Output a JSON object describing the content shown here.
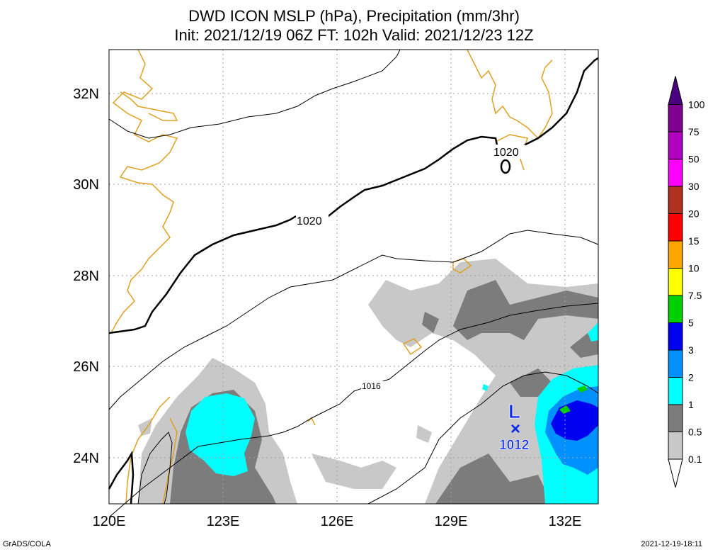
{
  "header": {
    "title_line1": "DWD ICON MSLP (hPa), Precipitation (mm/3hr)",
    "title_line2": "Init: 2021/12/19 06Z  FT: 102h  Valid: 2021/12/23 12Z"
  },
  "map": {
    "lon_range": [
      120,
      133
    ],
    "lat_range": [
      23,
      33
    ],
    "lon_ticks": [
      "120E",
      "123E",
      "126E",
      "129E",
      "132E"
    ],
    "lat_ticks": [
      "24N",
      "26N",
      "28N",
      "30N",
      "32N"
    ],
    "isobar_labels": [
      "1020",
      "1020",
      "1016"
    ],
    "low_center": {
      "symbol": "L",
      "marker": "×",
      "pressure": "1012"
    },
    "colors": {
      "coastline": "#e0a020",
      "isobar": "#000000",
      "low": "#0a28f0"
    }
  },
  "colorbar": {
    "labels": [
      "0.1",
      "0.5",
      "1",
      "2",
      "3",
      "5",
      "7.5",
      "10",
      "15",
      "20",
      "30",
      "50",
      "75",
      "100"
    ],
    "colors": [
      "#ffffff",
      "#c8c8c8",
      "#7c7c7c",
      "#00ffff",
      "#0090ff",
      "#0000f0",
      "#00d000",
      "#ffff00",
      "#ffa500",
      "#ff0000",
      "#b03020",
      "#ff00ff",
      "#b000c0",
      "#800090",
      "#4b0082"
    ]
  },
  "footer": {
    "left": "GrADS/COLA",
    "right": "2021-12-19-18:11"
  }
}
